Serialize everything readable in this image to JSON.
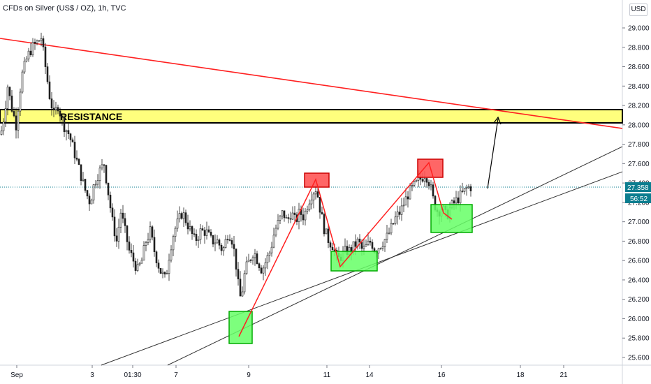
{
  "header": {
    "title": "CFDs on Silver (US$ / OZ), 1h, TVC",
    "currency": "USD"
  },
  "colors": {
    "up_candle": "#1e1e1e",
    "down_candle": "#1e1e1e",
    "resistance_fill": "#ffff66",
    "trendline": "#ff2020",
    "channel": "#333333",
    "last_price_bg": "#0b7d8f",
    "green_box": "#66ff66",
    "red_box": "#ff5555"
  },
  "chart_data": {
    "type": "candlestick",
    "title": "CFDs on Silver (US$ / OZ), 1h, TVC",
    "ylim": [
      25.5,
      29.2
    ],
    "y_ticks": [
      "29.000",
      "28.800",
      "28.600",
      "28.400",
      "28.200",
      "28.000",
      "27.800",
      "27.600",
      "27.400",
      "27.200",
      "27.000",
      "26.800",
      "26.600",
      "26.400",
      "26.200",
      "26.000",
      "25.800",
      "25.600"
    ],
    "x_ticks": [
      "Sep",
      "3",
      "01:30",
      "7",
      "9",
      "11",
      "14",
      "16",
      "18",
      "21"
    ],
    "last_price": "27.358",
    "countdown": "56:52",
    "annotations": {
      "resistance_label": "RESISTANCE",
      "resistance_zone": [
        28.02,
        28.16
      ]
    },
    "price_path": [
      [
        0,
        27.9
      ],
      [
        5,
        28.1
      ],
      [
        10,
        28.4
      ],
      [
        15,
        28.2
      ],
      [
        22,
        28.0
      ],
      [
        30,
        28.5
      ],
      [
        38,
        28.7
      ],
      [
        45,
        28.8
      ],
      [
        52,
        28.85
      ],
      [
        58,
        28.9
      ],
      [
        64,
        28.6
      ],
      [
        70,
        28.3
      ],
      [
        76,
        28.1
      ],
      [
        82,
        28.2
      ],
      [
        90,
        28.0
      ],
      [
        98,
        27.9
      ],
      [
        106,
        27.7
      ],
      [
        114,
        27.5
      ],
      [
        122,
        27.3
      ],
      [
        128,
        27.2
      ],
      [
        134,
        27.4
      ],
      [
        140,
        27.5
      ],
      [
        148,
        27.6
      ],
      [
        154,
        27.3
      ],
      [
        160,
        27.0
      ],
      [
        166,
        26.8
      ],
      [
        172,
        27.1
      ],
      [
        178,
        26.9
      ],
      [
        184,
        26.7
      ],
      [
        190,
        26.6
      ],
      [
        196,
        26.5
      ],
      [
        202,
        26.6
      ],
      [
        208,
        26.8
      ],
      [
        214,
        26.9
      ],
      [
        220,
        26.7
      ],
      [
        228,
        26.5
      ],
      [
        236,
        26.4
      ],
      [
        242,
        26.7
      ],
      [
        248,
        26.9
      ],
      [
        254,
        27.0
      ],
      [
        260,
        27.1
      ],
      [
        266,
        27.0
      ],
      [
        272,
        26.9
      ],
      [
        278,
        26.8
      ],
      [
        286,
        26.9
      ],
      [
        294,
        26.9
      ],
      [
        302,
        26.8
      ],
      [
        310,
        26.8
      ],
      [
        318,
        26.7
      ],
      [
        326,
        26.9
      ],
      [
        332,
        26.8
      ],
      [
        338,
        26.5
      ],
      [
        342,
        26.2
      ],
      [
        346,
        26.3
      ],
      [
        350,
        26.5
      ],
      [
        356,
        26.6
      ],
      [
        362,
        26.7
      ],
      [
        368,
        26.6
      ],
      [
        374,
        26.5
      ],
      [
        380,
        26.6
      ],
      [
        386,
        26.7
      ],
      [
        392,
        26.9
      ],
      [
        398,
        27.0
      ],
      [
        404,
        27.1
      ],
      [
        410,
        27.0
      ],
      [
        416,
        27.1
      ],
      [
        422,
        27.0
      ],
      [
        428,
        27.1
      ],
      [
        434,
        27.05
      ],
      [
        440,
        27.2
      ],
      [
        446,
        27.3
      ],
      [
        452,
        27.35
      ],
      [
        458,
        27.1
      ],
      [
        464,
        26.9
      ],
      [
        470,
        26.8
      ],
      [
        476,
        26.75
      ],
      [
        482,
        26.6
      ],
      [
        488,
        26.65
      ],
      [
        494,
        26.7
      ],
      [
        500,
        26.7
      ],
      [
        506,
        26.75
      ],
      [
        512,
        26.8
      ],
      [
        518,
        26.7
      ],
      [
        524,
        26.75
      ],
      [
        530,
        26.8
      ],
      [
        536,
        26.7
      ],
      [
        542,
        26.75
      ],
      [
        548,
        26.8
      ],
      [
        554,
        26.85
      ],
      [
        560,
        26.95
      ],
      [
        566,
        27.05
      ],
      [
        572,
        27.1
      ],
      [
        578,
        27.2
      ],
      [
        584,
        27.3
      ],
      [
        590,
        27.35
      ],
      [
        596,
        27.4
      ],
      [
        602,
        27.45
      ],
      [
        608,
        27.5
      ],
      [
        614,
        27.4
      ],
      [
        620,
        27.2
      ],
      [
        626,
        27.1
      ],
      [
        632,
        27.15
      ],
      [
        638,
        27.05
      ],
      [
        644,
        27.15
      ],
      [
        650,
        27.2
      ],
      [
        656,
        27.25
      ],
      [
        662,
        27.3
      ],
      [
        668,
        27.35
      ],
      [
        673,
        27.36
      ]
    ]
  }
}
